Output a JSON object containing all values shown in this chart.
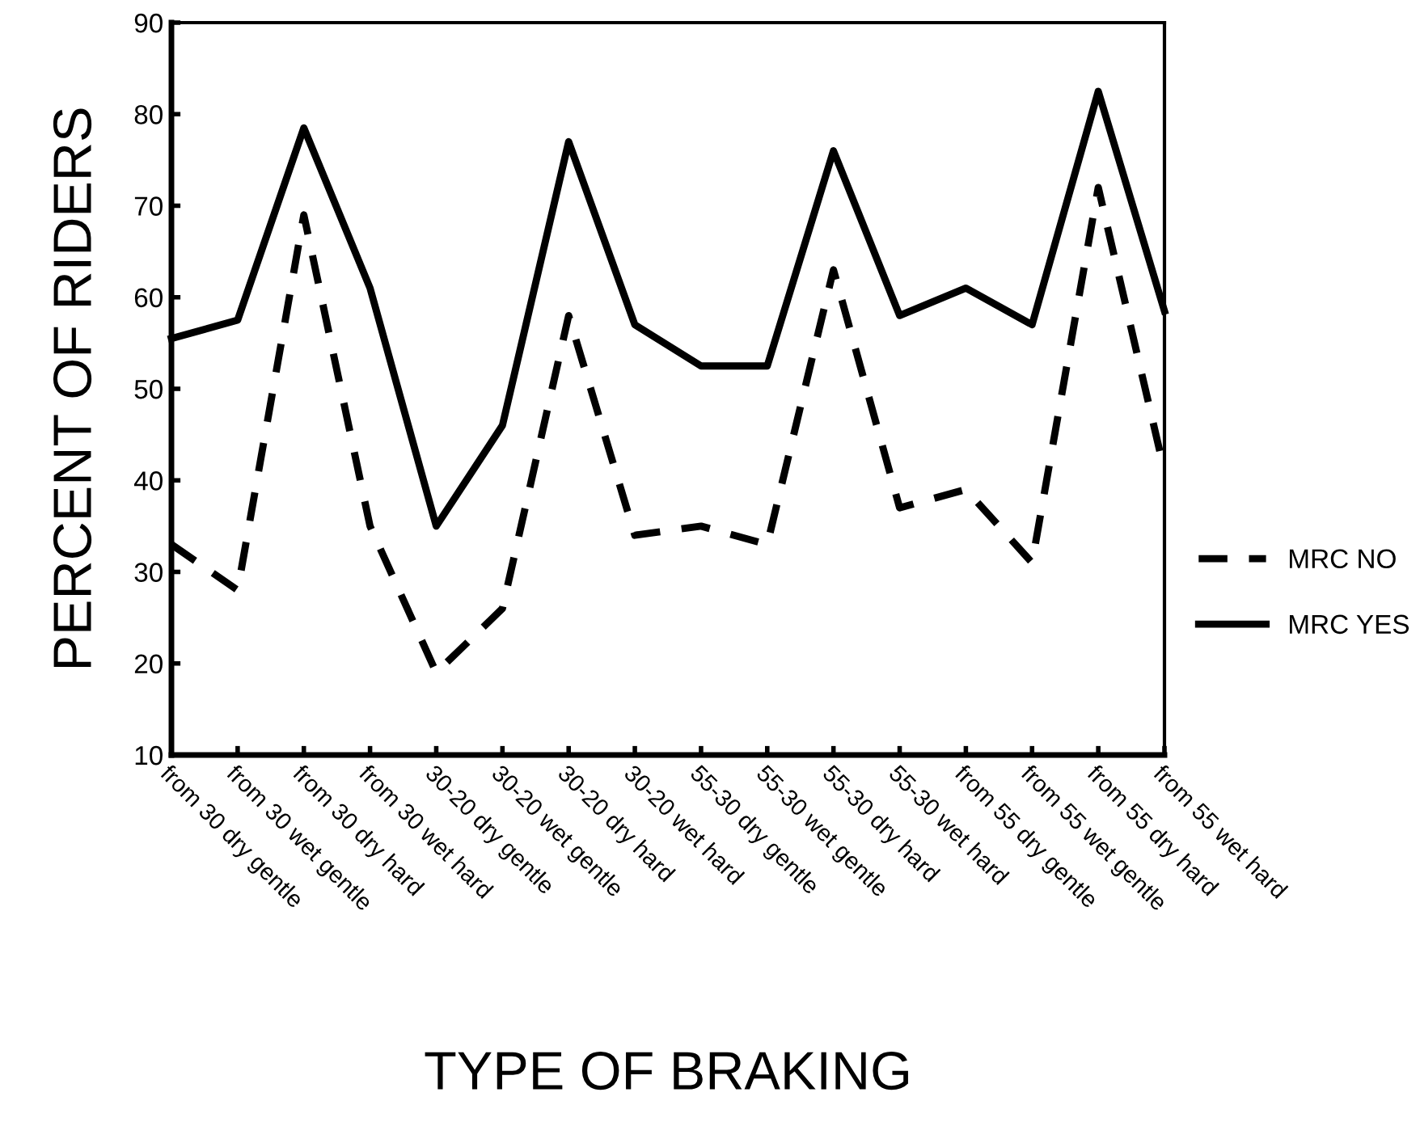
{
  "chart_data": {
    "type": "line",
    "xlabel": "TYPE OF BRAKING",
    "ylabel": "PERCENT OF RIDERS",
    "categories": [
      "from 30 dry gentle",
      "from 30 wet gentle",
      "from 30 dry hard",
      "from 30 wet hard",
      "30-20 dry gentle",
      "30-20 wet gentle",
      "30-20 dry hard",
      "30-20 wet hard",
      "55-30 dry gentle",
      "55-30 wet gentle",
      "55-30 dry hard",
      "55-30 wet hard",
      "from 55 dry gentle",
      "from 55 wet gentle",
      "from 55 dry hard",
      "from 55 wet hard"
    ],
    "series": [
      {
        "name": "MRC NO",
        "color": "#000000",
        "line_style": "dashed",
        "values": [
          33,
          28,
          69,
          35,
          19,
          26,
          58,
          34,
          35,
          33,
          63,
          37,
          39,
          31,
          72,
          41
        ]
      },
      {
        "name": "MRC YES",
        "color": "#000000",
        "line_style": "solid",
        "values": [
          55.5,
          57.5,
          78.5,
          61,
          35,
          46,
          77,
          57,
          52.5,
          52.5,
          76,
          58,
          61,
          57,
          82.5,
          58.5
        ]
      }
    ],
    "ylim": [
      10,
      90
    ],
    "yticks": [
      10,
      20,
      30,
      40,
      50,
      60,
      70,
      80,
      90
    ],
    "grid": false,
    "legend": "right",
    "marker": "none"
  }
}
